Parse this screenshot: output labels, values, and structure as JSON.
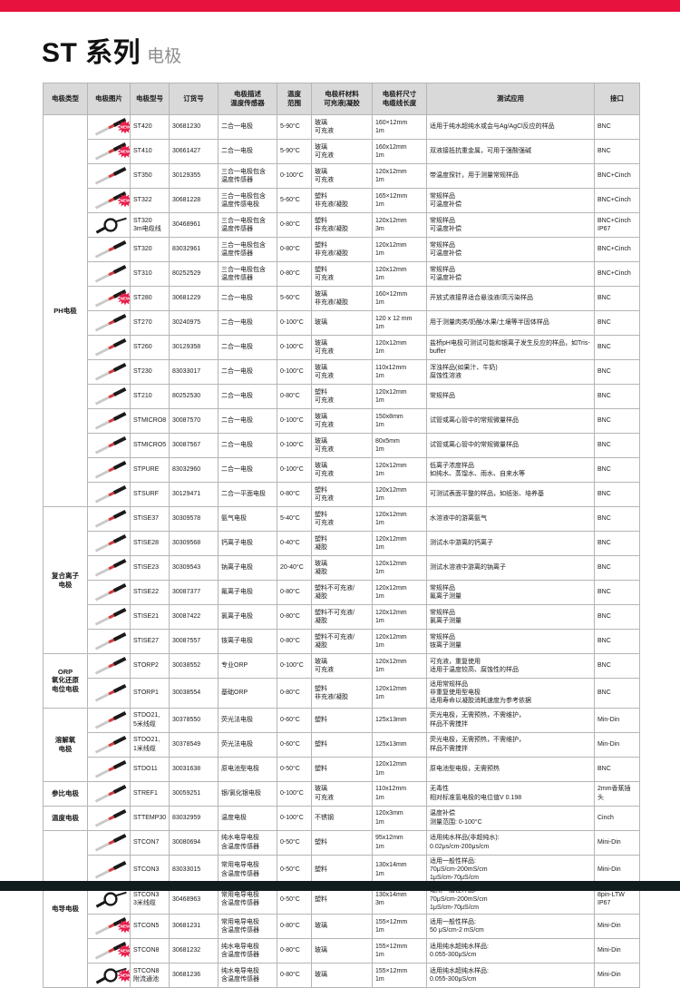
{
  "page": {
    "title_main": "ST 系列",
    "title_sub": "电极"
  },
  "colors": {
    "accent_red": "#e8123f",
    "badge_red": "#e81c4a",
    "header_bg": "#d9d9d9",
    "footer_bar": "#101c1e"
  },
  "table": {
    "headers": [
      "电极类型",
      "电极图片",
      "电极型号",
      "订货号",
      "电极描述\n温度传感器",
      "温度\n范围",
      "电极杆材料\n可充液|凝胶",
      "电极杆尺寸\n电缆线长度",
      "测试应用",
      "接口"
    ],
    "groups": [
      {
        "type": "PH电极",
        "rows": [
          {
            "model": "ST420",
            "order": "30681230",
            "desc": "二合一电极",
            "temp": "5-90°C",
            "material": "玻璃\n可充液",
            "size": "160×12mm\n1m",
            "app": "适用于纯水超纯水或会与Ag/AgCl反应的样品",
            "port": "BNC",
            "new": true,
            "img": "probe"
          },
          {
            "model": "ST410",
            "order": "30661427",
            "desc": "二合一电极",
            "temp": "5-90°C",
            "material": "玻璃\n可充液",
            "size": "160x12mm\n1m",
            "app": "双液接抵抗重金属，可用于强酸强碱",
            "port": "BNC",
            "new": true,
            "img": "probe"
          },
          {
            "model": "ST350",
            "order": "30129355",
            "desc": "三合一电极包含\n温度传感器",
            "temp": "0-100°C",
            "material": "玻璃\n可充液",
            "size": "120x12mm\n1m",
            "app": "带温度探针，用于测量常规样品",
            "port": "BNC+Cinch",
            "new": false,
            "img": "probe"
          },
          {
            "model": "ST322",
            "order": "30681228",
            "desc": "三合一电极包含\n温度传感电极",
            "temp": "5-60°C",
            "material": "塑料\n非充液/凝胶",
            "size": "165×12mm\n1m",
            "app": "常规样品\n可温度补偿",
            "port": "BNC+Cinch",
            "new": true,
            "img": "probe"
          },
          {
            "model": "ST320\n3m电缆线",
            "order": "30468961",
            "desc": "三合一电极包含\n温度传感器",
            "temp": "0-80°C",
            "material": "塑料\n非充液/凝胶",
            "size": "120x12mm\n3m",
            "app": "常规样品\n可温度补偿",
            "port": "BNC+Cinch\nIP67",
            "new": false,
            "img": "coil"
          },
          {
            "model": "ST320",
            "order": "83032961",
            "desc": "三合一电极包含\n温度传感器",
            "temp": "0-80°C",
            "material": "塑料\n非充液/凝胶",
            "size": "120x12mm\n1m",
            "app": "常规样品\n可温度补偿",
            "port": "BNC+Cinch",
            "new": false,
            "img": "probe"
          },
          {
            "model": "ST310",
            "order": "80252529",
            "desc": "三合一电极包含\n温度传感器",
            "temp": "0-80°C",
            "material": "塑料\n可充液",
            "size": "120x12mm\n1m",
            "app": "常规样品\n可温度补偿",
            "port": "BNC+Cinch",
            "new": false,
            "img": "probe"
          },
          {
            "model": "ST280",
            "order": "30681229",
            "desc": "二合一电极",
            "temp": "5-60°C",
            "material": "玻璃\n非充液/凝胶",
            "size": "160×12mm\n1m",
            "app": "开放式液接界适合悬浊液/高污染样品",
            "port": "BNC",
            "new": true,
            "img": "probe"
          },
          {
            "model": "ST270",
            "order": "30240975",
            "desc": "二合一电极",
            "temp": "0-100°C",
            "material": "玻璃",
            "size": "120 x 12 mm\n1m",
            "app": "用于测量肉类/奶酪/水果/土壤等半固体样品",
            "port": "BNC",
            "new": false,
            "img": "probe"
          },
          {
            "model": "ST260",
            "order": "30129358",
            "desc": "二合一电极",
            "temp": "0-100°C",
            "material": "玻璃\n可充液",
            "size": "120x12mm\n1m",
            "app": "盐桥pH电极可测试可能和银离子发生反应的样品，如Tris-buffer",
            "port": "BNC",
            "new": false,
            "img": "probe"
          },
          {
            "model": "ST230",
            "order": "83033017",
            "desc": "二合一电极",
            "temp": "0-100°C",
            "material": "玻璃\n可充液",
            "size": "110x12mm\n1m",
            "app": "浑浊样品(如果汁、牛奶)\n腐蚀性溶液",
            "port": "BNC",
            "new": false,
            "img": "probe"
          },
          {
            "model": "ST210",
            "order": "80252530",
            "desc": "二合一电极",
            "temp": "0-80°C",
            "material": "塑料\n可充液",
            "size": "120x12mm\n1m",
            "app": "常规样品",
            "port": "BNC",
            "new": false,
            "img": "probe"
          },
          {
            "model": "STMICRO8",
            "order": "30087570",
            "desc": "二合一电极",
            "temp": "0-100°C",
            "material": "玻璃\n可充液",
            "size": "150x8mm\n1m",
            "app": "试管或离心管中的常规微量样品",
            "port": "BNC",
            "new": false,
            "img": "probe"
          },
          {
            "model": "STMICRO5",
            "order": "30087567",
            "desc": "二合一电极",
            "temp": "0-100°C",
            "material": "玻璃\n可充液",
            "size": "80x5mm\n1m",
            "app": "试管或离心管中的常规微量样品",
            "port": "BNC",
            "new": false,
            "img": "probe"
          },
          {
            "model": "STPURE",
            "order": "83032960",
            "desc": "二合一电极",
            "temp": "0-100°C",
            "material": "玻璃\n可充液",
            "size": "120x12mm\n1m",
            "app": "低离子浓度样品\n如纯水、蒸馏水、雨水、自来水等",
            "port": "BNC",
            "new": false,
            "img": "probe"
          },
          {
            "model": "STSURF",
            "order": "30129471",
            "desc": "二合一平面电极",
            "temp": "0-80°C",
            "material": "塑料\n可充液",
            "size": "120x12mm\n1m",
            "app": "可测试表面平整的样品，如纸张、培养基",
            "port": "BNC",
            "new": false,
            "img": "probe"
          }
        ]
      },
      {
        "type": "复合离子\n电极",
        "rows": [
          {
            "model": "STISE37",
            "order": "30309578",
            "desc": "氨气电极",
            "temp": "5-40°C",
            "material": "塑料\n可充液",
            "size": "120x12mm\n1m",
            "app": "水溶液中的游离氨气",
            "port": "BNC",
            "new": false,
            "img": "probe"
          },
          {
            "model": "STISE28",
            "order": "30309568",
            "desc": "钙离子电极",
            "temp": "0-40°C",
            "material": "塑料\n凝胶",
            "size": "120x12mm\n1m",
            "app": "测试水中游离的钙离子",
            "port": "BNC",
            "new": false,
            "img": "probe"
          },
          {
            "model": "STISE23",
            "order": "30309543",
            "desc": "钠离子电极",
            "temp": "20-40°C",
            "material": "玻璃\n凝胶",
            "size": "120x12mm\n1m",
            "app": "测试水溶液中游离的钠离子",
            "port": "BNC",
            "new": false,
            "img": "probe"
          },
          {
            "model": "STISE22",
            "order": "30087377",
            "desc": "氟离子电极",
            "temp": "0-80°C",
            "material": "塑料不可充液/\n凝胶",
            "size": "120x12mm\n1m",
            "app": "常规样品\n氟离子测量",
            "port": "BNC",
            "new": false,
            "img": "probe"
          },
          {
            "model": "STISE21",
            "order": "30087422",
            "desc": "氯离子电极",
            "temp": "0-80°C",
            "material": "塑料不可充液/\n凝胶",
            "size": "120x12mm\n1m",
            "app": "常规样品\n氯离子测量",
            "port": "BNC",
            "new": false,
            "img": "probe"
          },
          {
            "model": "STISE27",
            "order": "30087557",
            "desc": "铵离子电极",
            "temp": "0-80°C",
            "material": "塑料不可充液/\n凝胶",
            "size": "120x12mm\n1m",
            "app": "常规样品\n铵离子测量",
            "port": "BNC",
            "new": false,
            "img": "probe"
          }
        ]
      },
      {
        "type": "ORP\n氧化还原\n电位电极",
        "rows": [
          {
            "model": "STORP2",
            "order": "30038552",
            "desc": "专业ORP",
            "temp": "0-100°C",
            "material": "玻璃\n可充液",
            "size": "120x12mm\n1m",
            "app": "可充液，重复使用\n适用于温度较高、腐蚀性的样品",
            "port": "BNC",
            "new": false,
            "img": "probe"
          },
          {
            "model": "STORP1",
            "order": "30038554",
            "desc": "基础ORP",
            "temp": "0-80°C",
            "material": "塑料\n非充液/凝胶",
            "size": "120x12mm\n1m",
            "app": "适用常规样品\n非重复使用型电极\n适用寿命以凝胶消耗速度为参考依据",
            "port": "BNC",
            "new": false,
            "img": "probe"
          }
        ]
      },
      {
        "type": "溶解氧\n电极",
        "rows": [
          {
            "model": "STDO21,\n5米线缆",
            "order": "30378550",
            "desc": "荧光法电极",
            "temp": "0-60°C",
            "material": "塑料",
            "size": "125x13mm",
            "app": "荧光电极，无需预热，不需维护，\n样品不需搅拌",
            "port": "Min-Din",
            "new": false,
            "img": "probe"
          },
          {
            "model": "STDO21,\n1米线缆",
            "order": "30378549",
            "desc": "荧光法电极",
            "temp": "0-60°C",
            "material": "塑料",
            "size": "125x13mm",
            "app": "荧光电极，无需预热，不需维护，\n样品不需搅拌",
            "port": "Min-Din",
            "new": false,
            "img": "probe"
          },
          {
            "model": "STDO11",
            "order": "30031638",
            "desc": "原电池型电极",
            "temp": "0-50°C",
            "material": "塑料",
            "size": "120x12mm\n1m",
            "app": "原电池型电极，无需预热",
            "port": "BNC",
            "new": false,
            "img": "probe"
          }
        ]
      },
      {
        "type": "参比电极",
        "rows": [
          {
            "model": "STREF1",
            "order": "30059251",
            "desc": "银/氯化银电极",
            "temp": "0-100°C",
            "material": "玻璃\n可充液",
            "size": "110x12mm\n1m",
            "app": "无毒性\n相对标准氢电极的电位值V 0.198",
            "port": "2mm香蕉插头",
            "new": false,
            "img": "probe"
          }
        ]
      },
      {
        "type": "温度电极",
        "rows": [
          {
            "model": "STTEMP30",
            "order": "83032959",
            "desc": "温度电极",
            "temp": "0-100°C",
            "material": "不锈钢",
            "size": "120x3mm\n1m",
            "app": "温度补偿\n测量范围: 0-100°C",
            "port": "Cinch",
            "new": false,
            "img": "probe"
          }
        ]
      },
      {
        "type": "电导电极",
        "rows": [
          {
            "model": "STCON7",
            "order": "30080694",
            "desc": "纯水电导电极\n含温度传感器",
            "temp": "0-50°C",
            "material": "塑料",
            "size": "95x12mm\n1m",
            "app": "适用纯水样品(非超纯水):\n0.02μs/cm-200μs/cm",
            "port": "Mini-Din",
            "new": false,
            "img": "probe"
          },
          {
            "model": "STCON3",
            "order": "83033015",
            "desc": "常用电导电极\n含温度传感器",
            "temp": "0-50°C",
            "material": "塑料",
            "size": "130x14mm\n1m",
            "app": "适用一般性样品:\n70μS/cm-200mS/cm\n1μS/cm-70μS/cm",
            "port": "Mini-Din",
            "new": false,
            "img": "probe"
          },
          {
            "model": "STCON3\n3米线缆",
            "order": "30468963",
            "desc": "常用电导电极\n含温度传感器",
            "temp": "0-50°C",
            "material": "塑料",
            "size": "130x14mm\n3m",
            "app": "适用一般性样品:\n70μS/cm-200mS/cm\n1μS/cm-70μS/cm",
            "port": "8pin-LTW\nIP67",
            "new": false,
            "img": "coil"
          },
          {
            "model": "STCON5",
            "order": "30681231",
            "desc": "常用电导电极\n含温度传感器",
            "temp": "0-80°C",
            "material": "玻璃",
            "size": "155×12mm\n1m",
            "app": "适用一般性样品:\n50 μS/cm-2 mS/cm",
            "port": "Mini-Din",
            "new": true,
            "img": "probe"
          },
          {
            "model": "STCON8",
            "order": "30681232",
            "desc": "纯水电导电极\n含温度传感器",
            "temp": "0-80°C",
            "material": "玻璃",
            "size": "155×12mm\n1m",
            "app": "适用纯水超纯水样品:\n0.055-300μS/cm",
            "port": "Mini-Din",
            "new": true,
            "img": "probe"
          },
          {
            "model": "STCON8\n附流通池",
            "order": "30681236",
            "desc": "纯水电导电极\n含温度传感器",
            "temp": "0-80°C",
            "material": "玻璃",
            "size": "155×12mm\n1m",
            "app": "适用纯水超纯水样品:\n0.055-300μS/cm",
            "port": "Mini-Din",
            "new": true,
            "img": "coil"
          }
        ]
      }
    ]
  }
}
